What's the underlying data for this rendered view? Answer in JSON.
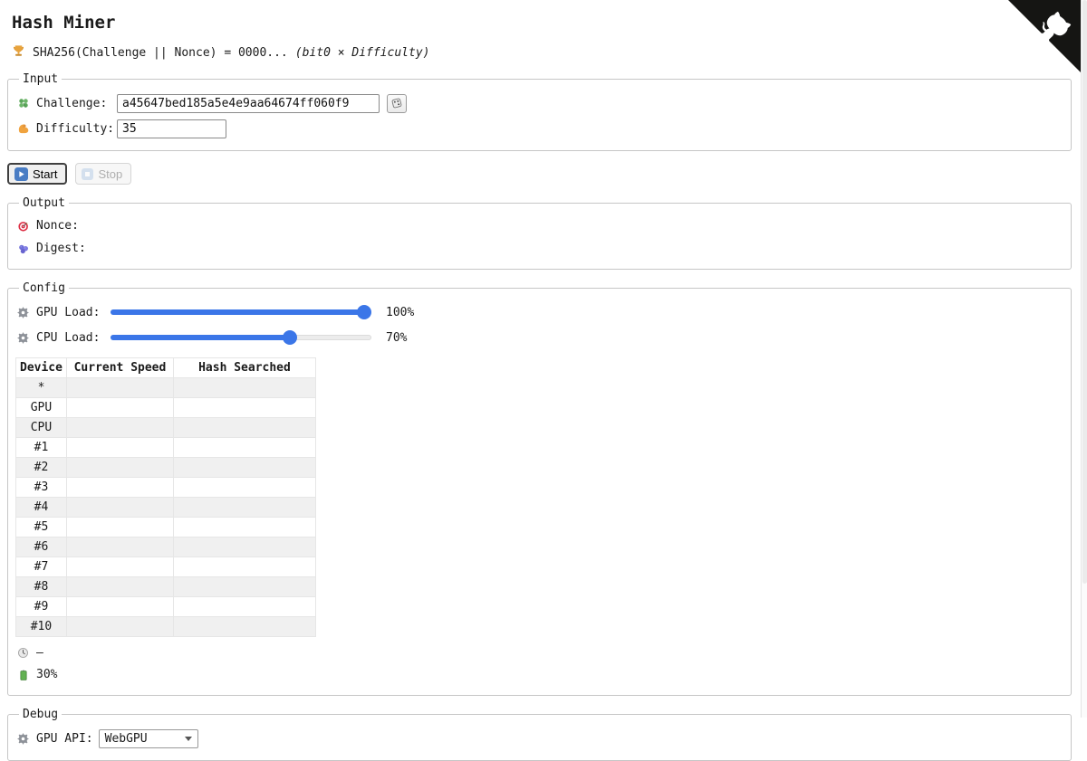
{
  "page": {
    "title": "Hash Miner"
  },
  "subtitle": {
    "icon": "trophy",
    "text": "SHA256(Challenge || Nonce) = 0000...",
    "hint": "(bit0 × Difficulty)"
  },
  "input": {
    "legend": "Input",
    "challenge_label": "Challenge:",
    "challenge_value": "a45647bed185a5e4e9aa64674ff060f9",
    "challenge_icon": "four-leaf-clover",
    "random_button_icon": "game-die",
    "difficulty_label": "Difficulty:",
    "difficulty_value": "35",
    "difficulty_icon": "flexed-biceps"
  },
  "controls": {
    "start_label": "Start",
    "start_icon": "play-button",
    "stop_label": "Stop",
    "stop_icon": "stop-button",
    "stop_disabled": true
  },
  "output": {
    "legend": "Output",
    "nonce_label": "Nonce:",
    "nonce_value": "",
    "nonce_icon": "dart-target",
    "digest_label": "Digest:",
    "digest_value": "",
    "digest_icon": "berries"
  },
  "config": {
    "legend": "Config",
    "gpu_load_label": "GPU Load:",
    "gpu_load_percent": 100,
    "gpu_load_text": "100%",
    "gpu_load_icon": "gear",
    "cpu_load_label": "CPU Load:",
    "cpu_load_percent": 70,
    "cpu_load_text": "70%",
    "cpu_load_icon": "gear",
    "table": {
      "headers": [
        "Device",
        "Current Speed",
        "Hash Searched"
      ],
      "rows": [
        [
          "*",
          "",
          ""
        ],
        [
          "GPU",
          "",
          ""
        ],
        [
          "CPU",
          "",
          ""
        ],
        [
          "#1",
          "",
          ""
        ],
        [
          "#2",
          "",
          ""
        ],
        [
          "#3",
          "",
          ""
        ],
        [
          "#4",
          "",
          ""
        ],
        [
          "#5",
          "",
          ""
        ],
        [
          "#6",
          "",
          ""
        ],
        [
          "#7",
          "",
          ""
        ],
        [
          "#8",
          "",
          ""
        ],
        [
          "#9",
          "",
          ""
        ],
        [
          "#10",
          "",
          ""
        ]
      ]
    },
    "elapsed_icon": "clock",
    "elapsed_value": "–",
    "battery_icon": "battery",
    "battery_value": "30%"
  },
  "debug": {
    "legend": "Debug",
    "gpu_api_icon": "gear",
    "gpu_api_label": "GPU API:",
    "gpu_api_value": "WebGPU"
  },
  "colors": {
    "accent_blue": "#3b76e8",
    "stripe_gray": "#f0f0f0",
    "play_icon_blue": "#4a7dc4",
    "battery_green": "#62b152",
    "dart_red": "#dd2e44",
    "berry_purple": "#6f6fd8",
    "trophy_gold": "#e8a33d",
    "clover_green": "#5ba85a",
    "biceps_orange": "#f0a33f"
  }
}
